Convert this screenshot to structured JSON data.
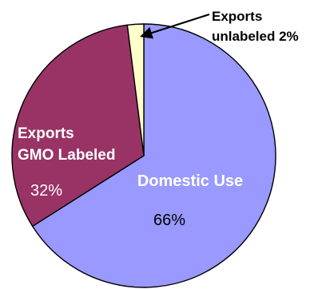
{
  "chart_data": {
    "type": "pie",
    "slices": [
      {
        "label_lines": [
          "Domestic Use"
        ],
        "value": 66,
        "value_label": "66%",
        "color": "#9999ff"
      },
      {
        "label_lines": [
          "Exports",
          "GMO Labeled"
        ],
        "value": 32,
        "value_label": "32%",
        "color": "#993366"
      },
      {
        "label_lines": [
          "Exports",
          "unlabeled 2%"
        ],
        "value": 2,
        "value_label": "",
        "color": "#ffffcc"
      }
    ],
    "legend": "none"
  }
}
